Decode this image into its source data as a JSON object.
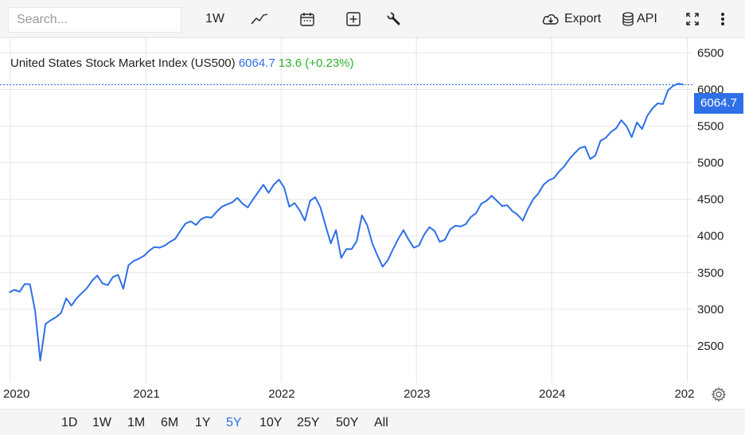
{
  "toolbar": {
    "search_placeholder": "Search...",
    "interval_label": "1W",
    "export_label": "Export",
    "api_label": "API",
    "icons": [
      "line-chart-icon",
      "calendar-icon",
      "add-indicator-icon",
      "wrench-icon",
      "cloud-download-icon",
      "database-icon",
      "fullscreen-icon",
      "more-icon"
    ]
  },
  "legend": {
    "name": "United States Stock Market Index (US500)",
    "value": "6064.7",
    "change": "13.6 (+0.23%)"
  },
  "last_value_label": "6064.7",
  "ranges": [
    "1D",
    "1W",
    "1M",
    "6M",
    "1Y",
    "5Y",
    "10Y",
    "25Y",
    "50Y",
    "All"
  ],
  "active_range": "5Y",
  "colors": {
    "line": "#2f6fe8",
    "change_positive": "#2db32d",
    "grid": "#e6e6e6"
  },
  "chart_data": {
    "type": "line",
    "title": "United States Stock Market Index (US500)",
    "xlabel": "",
    "ylabel": "",
    "x_tick_labels": [
      "2020",
      "2021",
      "2022",
      "2023",
      "2024",
      "202"
    ],
    "y_tick_labels": [
      "2500",
      "3000",
      "3500",
      "4000",
      "4500",
      "5000",
      "5500",
      "6000",
      "6500"
    ],
    "ylim": [
      2000,
      6700
    ],
    "xlim": [
      "2019-12-30",
      "2025-01-15"
    ],
    "grid": true,
    "last_value": 6064.7,
    "series": [
      {
        "name": "US500",
        "x": [
          "2019-12-29",
          "2020-01-12",
          "2020-01-26",
          "2020-02-09",
          "2020-02-23",
          "2020-03-08",
          "2020-03-22",
          "2020-04-05",
          "2020-04-19",
          "2020-05-03",
          "2020-05-17",
          "2020-05-31",
          "2020-06-14",
          "2020-06-28",
          "2020-07-12",
          "2020-07-26",
          "2020-08-09",
          "2020-08-23",
          "2020-09-06",
          "2020-09-20",
          "2020-10-04",
          "2020-10-18",
          "2020-11-01",
          "2020-11-15",
          "2020-11-29",
          "2020-12-13",
          "2020-12-27",
          "2021-01-10",
          "2021-01-24",
          "2021-02-07",
          "2021-02-21",
          "2021-03-07",
          "2021-03-21",
          "2021-04-04",
          "2021-04-18",
          "2021-05-02",
          "2021-05-16",
          "2021-05-30",
          "2021-06-13",
          "2021-06-27",
          "2021-07-11",
          "2021-07-25",
          "2021-08-08",
          "2021-08-22",
          "2021-09-05",
          "2021-09-19",
          "2021-10-03",
          "2021-10-17",
          "2021-10-31",
          "2021-11-14",
          "2021-11-28",
          "2021-12-12",
          "2021-12-26",
          "2022-01-09",
          "2022-01-23",
          "2022-02-06",
          "2022-02-20",
          "2022-03-06",
          "2022-03-20",
          "2022-04-03",
          "2022-04-17",
          "2022-05-01",
          "2022-05-15",
          "2022-05-29",
          "2022-06-12",
          "2022-06-26",
          "2022-07-10",
          "2022-07-24",
          "2022-08-07",
          "2022-08-21",
          "2022-09-04",
          "2022-09-18",
          "2022-10-02",
          "2022-10-16",
          "2022-10-30",
          "2022-11-13",
          "2022-11-27",
          "2022-12-11",
          "2022-12-25",
          "2023-01-08",
          "2023-01-22",
          "2023-02-05",
          "2023-02-19",
          "2023-03-05",
          "2023-03-19",
          "2023-04-02",
          "2023-04-16",
          "2023-04-30",
          "2023-05-14",
          "2023-05-28",
          "2023-06-11",
          "2023-06-25",
          "2023-07-09",
          "2023-07-23",
          "2023-08-06",
          "2023-08-20",
          "2023-09-03",
          "2023-09-17",
          "2023-10-01",
          "2023-10-15",
          "2023-10-29",
          "2023-11-12",
          "2023-11-26",
          "2023-12-10",
          "2023-12-24",
          "2024-01-07",
          "2024-01-21",
          "2024-02-04",
          "2024-02-18",
          "2024-03-03",
          "2024-03-17",
          "2024-03-31",
          "2024-04-14",
          "2024-04-28",
          "2024-05-12",
          "2024-05-26",
          "2024-06-09",
          "2024-06-23",
          "2024-07-07",
          "2024-07-21",
          "2024-08-04",
          "2024-08-18",
          "2024-09-01",
          "2024-09-15",
          "2024-09-29",
          "2024-10-13",
          "2024-10-27",
          "2024-11-10",
          "2024-11-24",
          "2024-12-08",
          "2024-12-22"
        ],
        "values": [
          3230,
          3265,
          3240,
          3345,
          3340,
          2980,
          2300,
          2800,
          2850,
          2890,
          2950,
          3150,
          3050,
          3150,
          3220,
          3290,
          3390,
          3460,
          3350,
          3330,
          3440,
          3470,
          3280,
          3600,
          3660,
          3690,
          3730,
          3800,
          3850,
          3840,
          3870,
          3920,
          3960,
          4070,
          4170,
          4200,
          4150,
          4230,
          4260,
          4250,
          4330,
          4400,
          4430,
          4460,
          4520,
          4440,
          4390,
          4500,
          4600,
          4700,
          4590,
          4700,
          4770,
          4660,
          4400,
          4450,
          4350,
          4210,
          4480,
          4530,
          4390,
          4140,
          3900,
          4080,
          3700,
          3820,
          3820,
          3930,
          4280,
          4150,
          3900,
          3730,
          3580,
          3670,
          3820,
          3960,
          4080,
          3950,
          3840,
          3870,
          4020,
          4120,
          4070,
          3920,
          3950,
          4090,
          4140,
          4130,
          4160,
          4260,
          4310,
          4440,
          4480,
          4550,
          4480,
          4410,
          4420,
          4340,
          4290,
          4210,
          4370,
          4500,
          4580,
          4700,
          4760,
          4790,
          4880,
          4950,
          5050,
          5130,
          5200,
          5220,
          5050,
          5100,
          5300,
          5340,
          5420,
          5470,
          5580,
          5500,
          5350,
          5550,
          5460,
          5640,
          5740,
          5810,
          5800,
          5990,
          6050,
          6080,
          6064.7
        ]
      }
    ]
  }
}
